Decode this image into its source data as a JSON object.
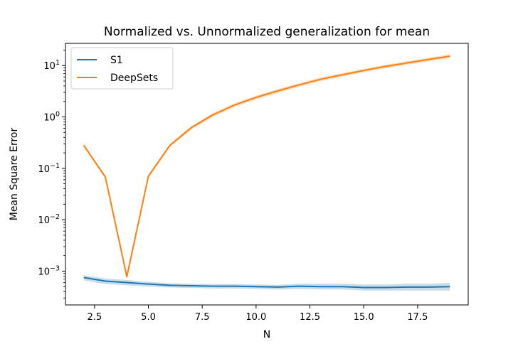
{
  "chart_data": {
    "type": "line",
    "title": "Normalized vs. Unnormalized generalization for mean",
    "xlabel": "N",
    "ylabel": "Mean Square Error",
    "yscale": "log",
    "xlim": [
      1.15,
      19.85
    ],
    "ylim": [
      0.00022,
      27
    ],
    "x_ticks": [
      {
        "value": 2.5,
        "label": "2.5"
      },
      {
        "value": 5.0,
        "label": "5.0"
      },
      {
        "value": 7.5,
        "label": "7.5"
      },
      {
        "value": 10.0,
        "label": "10.0"
      },
      {
        "value": 12.5,
        "label": "12.5"
      },
      {
        "value": 15.0,
        "label": "15.0"
      },
      {
        "value": 17.5,
        "label": "17.5"
      }
    ],
    "y_ticks": [
      {
        "value": 0.001,
        "base": "10",
        "exp": "−3"
      },
      {
        "value": 0.01,
        "base": "10",
        "exp": "−2"
      },
      {
        "value": 0.1,
        "base": "10",
        "exp": "−1"
      },
      {
        "value": 1,
        "base": "10",
        "exp": "0"
      },
      {
        "value": 10,
        "base": "10",
        "exp": "1"
      }
    ],
    "x": [
      2,
      3,
      4,
      5,
      6,
      7,
      8,
      9,
      10,
      11,
      12,
      13,
      14,
      15,
      16,
      17,
      18,
      19
    ],
    "series": [
      {
        "name": "S1",
        "color": "#1f77b4",
        "values": [
          0.00075,
          0.00064,
          0.0006,
          0.00056,
          0.00053,
          0.00052,
          0.00051,
          0.00051,
          0.0005,
          0.00049,
          0.00051,
          0.0005,
          0.0005,
          0.00048,
          0.00048,
          0.00049,
          0.00049,
          0.0005
        ],
        "lower": [
          0.00066,
          0.00056,
          0.00053,
          0.0005,
          0.00048,
          0.00047,
          0.00046,
          0.00046,
          0.00045,
          0.00044,
          0.00045,
          0.00044,
          0.00044,
          0.00042,
          0.00042,
          0.00042,
          0.00042,
          0.00042
        ],
        "upper": [
          0.00083,
          0.00072,
          0.00067,
          0.00062,
          0.00058,
          0.00057,
          0.00056,
          0.00056,
          0.00055,
          0.00054,
          0.00057,
          0.00057,
          0.00057,
          0.00055,
          0.00055,
          0.00057,
          0.00057,
          0.00059
        ]
      },
      {
        "name": "DeepSets",
        "color": "#ff7f0e",
        "values": [
          0.28,
          0.068,
          0.00078,
          0.07,
          0.28,
          0.62,
          1.1,
          1.7,
          2.4,
          3.2,
          4.2,
          5.4,
          6.6,
          8.0,
          9.6,
          11.2,
          13.1,
          15.2
        ],
        "lower": [
          0.26,
          0.063,
          0.00072,
          0.065,
          0.26,
          0.57,
          1.0,
          1.56,
          2.2,
          2.9,
          3.85,
          4.95,
          6.05,
          7.35,
          8.8,
          10.3,
          12.0,
          13.9
        ],
        "upper": [
          0.3,
          0.073,
          0.00084,
          0.075,
          0.3,
          0.67,
          1.2,
          1.84,
          2.6,
          3.5,
          4.55,
          5.85,
          7.15,
          8.65,
          10.4,
          12.1,
          14.2,
          16.5
        ]
      }
    ],
    "legend": {
      "position": "top-left"
    }
  }
}
